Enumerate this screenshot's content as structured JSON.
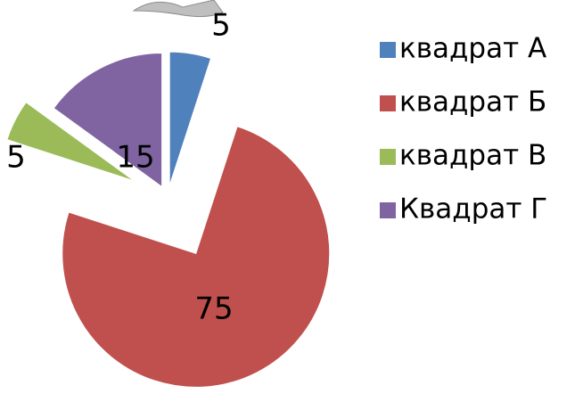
{
  "chart_data": {
    "type": "pie",
    "categories": [
      "квадрат А",
      "квадрат Б",
      "квадрат В",
      "Квадрат Г"
    ],
    "values": [
      5,
      75,
      5,
      15
    ],
    "colors": [
      "#4f81bd",
      "#c0504d",
      "#9bbb59",
      "#8064a2"
    ],
    "legend": "right"
  }
}
